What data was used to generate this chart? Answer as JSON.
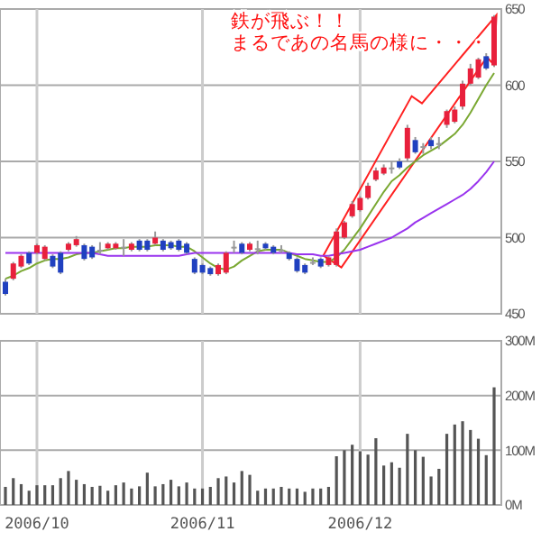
{
  "chart_data": [
    {
      "type": "candlestick",
      "annotations": [
        "鉄が飛ぶ！！",
        "まるであの名馬の様に・・・"
      ],
      "categories": [
        null,
        null,
        null,
        null,
        "2006/10",
        null,
        null,
        null,
        null,
        null,
        null,
        null,
        null,
        null,
        null,
        null,
        null,
        null,
        null,
        null,
        null,
        null,
        null,
        null,
        null,
        "2006/11",
        null,
        null,
        null,
        null,
        null,
        null,
        null,
        null,
        null,
        null,
        null,
        null,
        null,
        null,
        null,
        null,
        null,
        null,
        null,
        "2006/12",
        null,
        null,
        null,
        null,
        null,
        null,
        null,
        null,
        null,
        null,
        null,
        null,
        null,
        null,
        null,
        null,
        null
      ],
      "ohlc": [
        [
          471,
          473,
          462,
          463
        ],
        [
          473,
          484,
          472,
          483
        ],
        [
          481,
          489,
          480,
          488
        ],
        [
          490,
          491,
          482,
          483
        ],
        [
          490,
          496,
          489,
          495
        ],
        [
          486,
          495,
          485,
          494
        ],
        [
          488,
          489,
          480,
          481
        ],
        [
          490,
          491,
          476,
          477
        ],
        [
          492,
          497,
          491,
          496
        ],
        [
          495,
          501,
          494,
          499
        ],
        [
          495,
          496,
          485,
          486
        ],
        [
          494,
          495,
          486,
          487
        ],
        [
          492,
          497,
          489,
          492
        ],
        [
          493,
          497,
          492,
          496
        ],
        [
          493,
          497,
          492,
          496
        ],
        [
          494,
          499,
          488,
          494
        ],
        [
          492,
          497,
          491,
          496
        ],
        [
          498,
          499,
          491,
          492
        ],
        [
          498,
          499,
          491,
          492
        ],
        [
          496,
          504,
          495,
          500
        ],
        [
          498,
          499,
          491,
          492
        ],
        [
          497,
          498,
          492,
          493
        ],
        [
          498,
          499,
          491,
          492
        ],
        [
          496,
          497,
          489,
          490
        ],
        [
          486,
          487,
          476,
          477
        ],
        [
          482,
          483,
          476,
          477
        ],
        [
          480,
          481,
          475,
          476
        ],
        [
          476,
          483,
          475,
          482
        ],
        [
          477,
          491,
          476,
          490
        ],
        [
          494,
          498,
          490,
          494
        ],
        [
          496,
          497,
          489,
          490
        ],
        [
          492,
          497,
          491,
          496
        ],
        [
          493,
          498,
          489,
          493
        ],
        [
          496,
          497,
          492,
          493
        ],
        [
          494,
          495,
          489,
          490
        ],
        [
          492,
          495,
          490,
          492
        ],
        [
          490,
          491,
          485,
          486
        ],
        [
          486,
          487,
          477,
          478
        ],
        [
          482,
          483,
          476,
          477
        ],
        [
          484,
          487,
          482,
          484
        ],
        [
          486,
          487,
          480,
          481
        ],
        [
          482,
          488,
          481,
          487
        ],
        [
          482,
          506,
          481,
          504
        ],
        [
          500,
          511,
          499,
          510
        ],
        [
          514,
          524,
          513,
          522
        ],
        [
          518,
          527,
          517,
          526
        ],
        [
          526,
          536,
          525,
          534
        ],
        [
          538,
          546,
          537,
          544
        ],
        [
          542,
          548,
          541,
          546
        ],
        [
          546,
          550,
          542,
          546
        ],
        [
          550,
          552,
          545,
          546
        ],
        [
          552,
          574,
          550,
          572
        ],
        [
          564,
          566,
          555,
          556
        ],
        [
          560,
          562,
          555,
          560
        ],
        [
          564,
          566,
          558,
          560
        ],
        [
          562,
          566,
          558,
          562
        ],
        [
          574,
          584,
          572,
          583
        ],
        [
          576,
          586,
          575,
          584
        ],
        [
          586,
          603,
          584,
          601
        ],
        [
          601,
          614,
          600,
          611
        ],
        [
          605,
          618,
          604,
          617
        ],
        [
          619,
          621,
          610,
          611
        ],
        [
          613,
          646,
          612,
          645
        ]
      ],
      "colors": [
        "#2040c0",
        "#e8203c",
        "#e8203c",
        "#2040c0",
        "#e8203c",
        "#e8203c",
        "#2040c0",
        "#2040c0",
        "#e8203c",
        "#e8203c",
        "#2040c0",
        "#2040c0",
        "#999999",
        "#e8203c",
        "#e8203c",
        "#999999",
        "#e8203c",
        "#2040c0",
        "#2040c0",
        "#e8203c",
        "#2040c0",
        "#2040c0",
        "#2040c0",
        "#2040c0",
        "#2040c0",
        "#2040c0",
        "#2040c0",
        "#e8203c",
        "#e8203c",
        "#999999",
        "#2040c0",
        "#e8203c",
        "#999999",
        "#2040c0",
        "#2040c0",
        "#999999",
        "#2040c0",
        "#2040c0",
        "#2040c0",
        "#999999",
        "#2040c0",
        "#e8203c",
        "#e8203c",
        "#e8203c",
        "#e8203c",
        "#e8203c",
        "#e8203c",
        "#e8203c",
        "#e8203c",
        "#999999",
        "#2040c0",
        "#e8203c",
        "#2040c0",
        "#999999",
        "#2040c0",
        "#999999",
        "#e8203c",
        "#e8203c",
        "#e8203c",
        "#e8203c",
        "#e8203c",
        "#2040c0",
        "#e8203c"
      ],
      "series": [
        {
          "type": "line",
          "color": "#7aa832",
          "values": [
            473,
            475,
            478,
            480,
            483,
            485,
            486,
            486,
            487,
            489,
            490,
            490,
            491,
            492,
            493,
            493,
            494,
            494,
            494,
            495,
            495,
            495,
            494,
            494,
            491,
            487,
            483,
            480,
            479,
            481,
            485,
            488,
            491,
            492,
            492,
            492,
            490,
            488,
            486,
            485,
            484,
            484,
            487,
            492,
            499,
            506,
            514,
            522,
            530,
            537,
            541,
            546,
            550,
            554,
            557,
            560,
            564,
            568,
            574,
            582,
            591,
            600,
            608
          ]
        },
        {
          "type": "line",
          "color": "#9933ee",
          "values": [
            490,
            490,
            490,
            490,
            490,
            490,
            490,
            490,
            490,
            490,
            490,
            490,
            489,
            488,
            488,
            488,
            488,
            488,
            488,
            488,
            488,
            488,
            488,
            489,
            490,
            490,
            490,
            490,
            490,
            490,
            490,
            490,
            490,
            490,
            490,
            490,
            490,
            489,
            489,
            489,
            488,
            488,
            489,
            490,
            491,
            492,
            494,
            496,
            498,
            500,
            503,
            506,
            510,
            513,
            516,
            519,
            522,
            525,
            528,
            532,
            537,
            543,
            550
          ]
        }
      ],
      "ylim": [
        450,
        650
      ],
      "yticks": [
        450,
        500,
        550,
        600,
        650
      ],
      "grid": true,
      "tick_labels": "y"
    },
    {
      "type": "bar",
      "categories": [
        null,
        null,
        null,
        null,
        "2006/10",
        null,
        null,
        null,
        null,
        null,
        null,
        null,
        null,
        null,
        null,
        null,
        null,
        null,
        null,
        null,
        null,
        null,
        null,
        null,
        null,
        "2006/11",
        null,
        null,
        null,
        null,
        null,
        null,
        null,
        null,
        null,
        null,
        null,
        null,
        null,
        null,
        null,
        null,
        null,
        null,
        null,
        "2006/12",
        null,
        null,
        null,
        null,
        null,
        null,
        null,
        null,
        null,
        null,
        null,
        null,
        null,
        null,
        null,
        null,
        null
      ],
      "values": [
        33,
        49,
        38,
        26,
        36,
        36,
        36,
        49,
        62,
        46,
        38,
        33,
        35,
        26,
        36,
        41,
        30,
        34,
        59,
        34,
        38,
        46,
        34,
        41,
        30,
        30,
        33,
        49,
        52,
        41,
        62,
        55,
        26,
        30,
        30,
        33,
        30,
        30,
        24,
        30,
        30,
        33,
        89,
        100,
        110,
        98,
        92,
        122,
        72,
        78,
        68,
        130,
        100,
        88,
        52,
        66,
        130,
        147,
        153,
        137,
        121,
        91,
        215
      ],
      "color": "#555555",
      "ylim": [
        0,
        300
      ],
      "yticks": [
        {
          "value": 0,
          "label": "0M"
        },
        {
          "value": 100,
          "label": "100M"
        },
        {
          "value": 200,
          "label": "200M"
        },
        {
          "value": 300,
          "label": "300M"
        }
      ],
      "grid": true
    }
  ]
}
